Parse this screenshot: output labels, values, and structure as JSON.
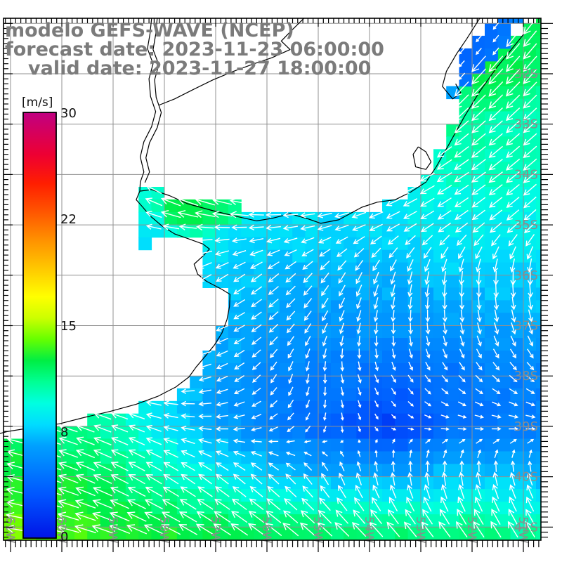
{
  "title": {
    "line1": "modelo GEFS-WAVE (NCEP)",
    "line2": "forecast date: 2023-11-23 06:00:00",
    "line3": "valid date: 2023-11-27 18:00:00"
  },
  "colorbar": {
    "unit_label": "[m/s]",
    "tick_labels": [
      "30",
      "22",
      "15",
      "8",
      "0"
    ],
    "min": 0,
    "max": 30,
    "stops": [
      [
        0,
        "#0014e6"
      ],
      [
        3,
        "#0055ff"
      ],
      [
        5,
        "#0080ff"
      ],
      [
        6.5,
        "#00a0ff"
      ],
      [
        8,
        "#00dcff"
      ],
      [
        9.5,
        "#00ffe0"
      ],
      [
        11,
        "#00ff94"
      ],
      [
        12.5,
        "#00ee44"
      ],
      [
        14,
        "#66ff00"
      ],
      [
        15.5,
        "#ccff00"
      ],
      [
        17,
        "#ffff00"
      ],
      [
        19,
        "#ffc800"
      ],
      [
        21,
        "#ff9100"
      ],
      [
        23,
        "#ff5500"
      ],
      [
        25,
        "#ff1e00"
      ],
      [
        27,
        "#ee0032"
      ],
      [
        30,
        "#c00082"
      ]
    ]
  },
  "axes": {
    "lat_labels": [
      "32S",
      "33S",
      "34S",
      "35S",
      "36S",
      "37S",
      "38S",
      "39S",
      "40S",
      "41S"
    ],
    "lat_values": [
      -32,
      -33,
      -34,
      -35,
      -36,
      -37,
      -38,
      -39,
      -40,
      -41
    ],
    "lon_labels": [
      "61W",
      "60W",
      "59W",
      "58W",
      "57W",
      "56W",
      "55W",
      "54W",
      "53W",
      "52W",
      "51W"
    ],
    "lon_values": [
      -61,
      -60,
      -59,
      -58,
      -57,
      -56,
      -55,
      -54,
      -53,
      -52,
      -51
    ],
    "label_color": "#8c8c8c",
    "grid_color": "#909090"
  },
  "chart_data": {
    "type": "heatmap",
    "units": "m/s",
    "value_range": [
      0,
      30
    ],
    "grid_lons": [
      -61.5,
      -60.5,
      -59.5,
      -58.5,
      -57.5,
      -56.5,
      -55.5,
      -54.5,
      -53.5,
      -52.5,
      -51.5,
      -50.5
    ],
    "grid_lats": [
      -31,
      -32,
      -33,
      -34,
      -35,
      -36,
      -37,
      -38,
      -39,
      -40,
      -41,
      -42
    ],
    "speed_grid": [
      [
        11,
        11,
        11,
        11,
        11,
        11,
        11,
        11,
        11.5,
        12,
        12.5,
        12
      ],
      [
        10,
        10,
        10,
        10,
        10,
        10,
        10,
        10.5,
        11.5,
        12.5,
        12.5,
        11.5
      ],
      [
        10,
        10,
        10,
        10,
        10,
        9.8,
        9.5,
        9.5,
        10,
        11,
        10.5,
        10
      ],
      [
        11,
        11,
        11,
        10.5,
        10,
        9.5,
        9,
        8.8,
        9,
        10,
        10,
        10
      ],
      [
        10.5,
        10.5,
        10.5,
        10,
        9,
        8.5,
        8.2,
        8,
        8.2,
        8.8,
        8.8,
        9
      ],
      [
        9,
        9,
        9,
        8.5,
        8,
        7.5,
        7.2,
        7,
        7.2,
        7.5,
        7.8,
        8
      ],
      [
        9.5,
        9.5,
        9.5,
        9,
        7.5,
        6.8,
        6.3,
        6,
        6,
        6.2,
        6.5,
        6.8
      ],
      [
        10,
        10,
        10,
        9.5,
        7.2,
        6,
        5.2,
        4.6,
        4.2,
        4.4,
        5,
        5.2
      ],
      [
        11.5,
        11.5,
        11,
        9.5,
        7.5,
        6,
        4.5,
        3.2,
        1.8,
        4,
        4.8,
        5
      ],
      [
        13,
        12.8,
        12.2,
        11,
        9.5,
        8.5,
        7.5,
        7,
        7,
        7.5,
        7.5,
        7
      ],
      [
        14,
        13.8,
        13.2,
        12.8,
        12.4,
        12,
        11.8,
        11.6,
        11.4,
        11.2,
        11,
        10.5
      ],
      [
        15.2,
        15,
        14.4,
        13.8,
        13.2,
        12.8,
        12.4,
        12.2,
        12,
        11.6,
        11.4,
        11
      ]
    ],
    "direction_grid": [
      [
        230,
        230,
        230,
        230,
        230,
        230,
        230,
        230,
        230,
        230,
        232,
        232
      ],
      [
        226,
        226,
        226,
        226,
        226,
        226,
        226,
        226,
        226,
        228,
        228,
        228
      ],
      [
        218,
        218,
        218,
        218,
        218,
        218,
        218,
        218,
        220,
        222,
        222,
        222
      ],
      [
        142,
        142,
        144,
        146,
        150,
        158,
        172,
        192,
        204,
        212,
        218,
        222
      ],
      [
        158,
        158,
        160,
        163,
        172,
        180,
        188,
        198,
        208,
        214,
        219,
        224
      ],
      [
        200,
        200,
        202,
        204,
        208,
        214,
        222,
        238,
        252,
        262,
        268,
        270
      ],
      [
        172,
        174,
        178,
        184,
        194,
        210,
        230,
        252,
        268,
        278,
        285,
        290
      ],
      [
        156,
        158,
        162,
        172,
        190,
        215,
        252,
        282,
        300,
        310,
        316,
        320
      ],
      [
        168,
        165,
        160,
        158,
        172,
        190,
        225,
        280,
        330,
        350,
        355,
        356
      ],
      [
        168,
        162,
        156,
        150,
        145,
        140,
        134,
        112,
        98,
        96,
        102,
        112
      ],
      [
        172,
        168,
        162,
        156,
        150,
        145,
        140,
        135,
        130,
        126,
        122,
        120
      ],
      [
        175,
        172,
        166,
        160,
        153,
        148,
        143,
        138,
        134,
        130,
        128,
        126
      ]
    ],
    "sea_rows": [
      [
        -30.75,
        -50.75
      ],
      [
        -31,
        -51
      ],
      [
        -31.25,
        -51.25
      ],
      [
        -31.5,
        -51.5
      ],
      [
        -31.75,
        -52
      ],
      [
        -32,
        -52
      ],
      [
        -32.25,
        -52.25
      ],
      [
        -32.5,
        -52.25
      ],
      [
        -32.75,
        -52.25
      ],
      [
        -33,
        -52.5
      ],
      [
        -33.25,
        -52.5
      ],
      [
        -33.5,
        -52.75
      ],
      [
        -33.75,
        -52.75
      ],
      [
        -34,
        -53
      ],
      [
        -34.25,
        -53.25
      ],
      [
        -34.5,
        -53.75
      ],
      [
        -34.75,
        -56.5
      ],
      [
        -35,
        -57
      ],
      [
        -35.25,
        -57.25
      ],
      [
        -35.5,
        -57.25
      ],
      [
        -35.75,
        -57.25
      ],
      [
        -36,
        -57.25
      ],
      [
        -36.25,
        -56.75
      ],
      [
        -36.5,
        -56.75
      ],
      [
        -36.75,
        -56.75
      ],
      [
        -37,
        -57
      ],
      [
        -37.25,
        -57
      ],
      [
        -37.5,
        -57.25
      ],
      [
        -37.75,
        -57.25
      ],
      [
        -38,
        -57.5
      ],
      [
        -38.25,
        -57.75
      ],
      [
        -38.5,
        -58.5
      ],
      [
        -38.75,
        -59.5
      ],
      [
        -39,
        -60.5
      ],
      [
        -39.25,
        -61.25
      ],
      [
        -39.5,
        -61.25
      ],
      [
        -39.75,
        -61.25
      ],
      [
        -40,
        -61.25
      ],
      [
        -40.25,
        -61.25
      ],
      [
        -40.5,
        -61.25
      ],
      [
        -40.75,
        -61.25
      ],
      [
        -41,
        -61.25
      ],
      [
        -41.25,
        -61.25
      ]
    ],
    "extra_cells": [
      [
        -30.75,
        -51.5,
        4.5
      ],
      [
        -30.75,
        -51.25,
        5
      ],
      [
        -31,
        -51.75,
        4
      ],
      [
        -31,
        -51.5,
        4.5
      ],
      [
        -31.25,
        -52,
        4
      ],
      [
        -31.25,
        -51.75,
        4.2
      ],
      [
        -31.25,
        -51.5,
        4.8
      ],
      [
        -31.5,
        -52.25,
        3.8
      ],
      [
        -31.5,
        -52,
        4
      ],
      [
        -31.5,
        -51.75,
        4.5
      ],
      [
        -31.75,
        -52.25,
        4
      ],
      [
        -31.75,
        -52,
        4.2
      ],
      [
        -32,
        -52.25,
        4.5
      ],
      [
        -32.25,
        -52.5,
        6.5
      ],
      [
        -34.25,
        -58.5,
        9.5
      ],
      [
        -34.25,
        -58.25,
        10
      ],
      [
        -34.5,
        -58.5,
        10
      ],
      [
        -34.5,
        -58.25,
        10.5
      ],
      [
        -34.5,
        -58,
        12.3
      ],
      [
        -34.5,
        -57.75,
        12.5
      ],
      [
        -34.5,
        -57.5,
        12.3
      ],
      [
        -34.5,
        -57.25,
        12
      ],
      [
        -34.5,
        -57,
        11.5
      ],
      [
        -34.5,
        -56.75,
        11
      ],
      [
        -34.75,
        -58.5,
        9
      ],
      [
        -34.75,
        -58.25,
        9.5
      ],
      [
        -34.75,
        -58,
        12
      ],
      [
        -34.75,
        -57.75,
        12.3
      ],
      [
        -34.75,
        -57.5,
        12.5
      ],
      [
        -34.75,
        -57.25,
        12
      ],
      [
        -34.75,
        -57,
        11.5
      ],
      [
        -34.75,
        -56.75,
        11
      ],
      [
        -35,
        -58.5,
        8.5
      ],
      [
        -35,
        -58.25,
        8.5
      ],
      [
        -35,
        -58,
        9.5
      ],
      [
        -35,
        -57.75,
        10
      ],
      [
        -35,
        -57.5,
        10.5
      ],
      [
        -35,
        -57.25,
        10
      ],
      [
        -35.25,
        -58.5,
        8
      ]
    ],
    "coastlines": {
      "ocean_coast": [
        [
          -50.75,
          -30.9
        ],
        [
          -51.1,
          -31.35
        ],
        [
          -51.5,
          -31.85
        ],
        [
          -51.85,
          -32.35
        ],
        [
          -52.15,
          -32.85
        ],
        [
          -52.45,
          -33.4
        ],
        [
          -52.7,
          -33.85
        ],
        [
          -52.9,
          -34.15
        ],
        [
          -53.2,
          -34.35
        ],
        [
          -53.5,
          -34.5
        ],
        [
          -53.85,
          -34.55
        ],
        [
          -54.15,
          -34.65
        ],
        [
          -54.6,
          -34.9
        ],
        [
          -54.95,
          -34.97
        ],
        [
          -55.2,
          -34.88
        ],
        [
          -55.55,
          -34.78
        ],
        [
          -55.9,
          -34.87
        ],
        [
          -56.2,
          -34.92
        ],
        [
          -56.6,
          -34.83
        ],
        [
          -57.05,
          -34.72
        ],
        [
          -57.55,
          -34.58
        ],
        [
          -57.9,
          -34.42
        ],
        [
          -58.25,
          -34.3
        ],
        [
          -58.48,
          -34.33
        ],
        [
          -58.55,
          -34.5
        ],
        [
          -58.42,
          -34.65
        ],
        [
          -58.28,
          -34.82
        ],
        [
          -58.05,
          -35.02
        ],
        [
          -57.8,
          -35.18
        ],
        [
          -57.52,
          -35.28
        ],
        [
          -57.25,
          -35.38
        ],
        [
          -57.12,
          -35.48
        ],
        [
          -57.25,
          -35.62
        ],
        [
          -57.42,
          -35.78
        ],
        [
          -57.35,
          -35.98
        ],
        [
          -57.18,
          -36.12
        ],
        [
          -56.88,
          -36.28
        ],
        [
          -56.72,
          -36.38
        ],
        [
          -56.73,
          -36.62
        ],
        [
          -56.78,
          -36.88
        ],
        [
          -56.88,
          -37.15
        ],
        [
          -57.02,
          -37.38
        ],
        [
          -57.18,
          -37.58
        ],
        [
          -57.38,
          -37.82
        ],
        [
          -57.52,
          -38.02
        ],
        [
          -57.78,
          -38.22
        ],
        [
          -58.12,
          -38.4
        ],
        [
          -58.55,
          -38.56
        ],
        [
          -59.05,
          -38.7
        ],
        [
          -59.55,
          -38.82
        ],
        [
          -60.05,
          -38.95
        ],
        [
          -60.55,
          -39.02
        ],
        [
          -61.05,
          -39.1
        ],
        [
          -61.35,
          -39.18
        ]
      ],
      "uruguay_river_west": [
        [
          -58.25,
          -30.9
        ],
        [
          -58.28,
          -31.2
        ],
        [
          -58.33,
          -31.5
        ],
        [
          -58.22,
          -31.8
        ],
        [
          -58.3,
          -32.1
        ],
        [
          -58.27,
          -32.45
        ],
        [
          -58.17,
          -32.75
        ],
        [
          -58.25,
          -33.05
        ],
        [
          -58.4,
          -33.35
        ],
        [
          -58.47,
          -33.65
        ],
        [
          -58.4,
          -33.95
        ],
        [
          -58.47,
          -34.15
        ],
        [
          -58.48,
          -34.33
        ]
      ],
      "uruguay_river_east": [
        [
          -58.14,
          -30.9
        ],
        [
          -58.17,
          -31.22
        ],
        [
          -58.22,
          -31.52
        ],
        [
          -58.11,
          -31.82
        ],
        [
          -58.19,
          -32.12
        ],
        [
          -58.16,
          -32.47
        ],
        [
          -58.06,
          -32.77
        ],
        [
          -58.14,
          -33.07
        ],
        [
          -58.29,
          -33.37
        ],
        [
          -58.36,
          -33.67
        ],
        [
          -58.29,
          -33.95
        ],
        [
          -58.38,
          -34.16
        ]
      ],
      "negro_river": [
        [
          -55.28,
          -30.9
        ],
        [
          -55.5,
          -31.12
        ],
        [
          -55.72,
          -31.35
        ],
        [
          -55.55,
          -31.52
        ],
        [
          -55.9,
          -31.68
        ],
        [
          -56.25,
          -31.8
        ],
        [
          -56.65,
          -31.95
        ],
        [
          -57.05,
          -32.12
        ],
        [
          -57.45,
          -32.32
        ],
        [
          -57.8,
          -32.5
        ],
        [
          -58.1,
          -32.62
        ]
      ],
      "lagoon_inner_shore": [
        [
          -51.85,
          -30.9
        ],
        [
          -52.1,
          -31.3
        ],
        [
          -52.3,
          -31.6
        ],
        [
          -52.5,
          -31.95
        ],
        [
          -52.58,
          -32.25
        ],
        [
          -52.38,
          -32.5
        ],
        [
          -52.22,
          -32.38
        ],
        [
          -52.32,
          -32.2
        ]
      ],
      "small_lagoon": [
        [
          -53.05,
          -33.45
        ],
        [
          -52.9,
          -33.55
        ],
        [
          -52.8,
          -33.75
        ],
        [
          -52.9,
          -33.9
        ],
        [
          -53.1,
          -33.85
        ],
        [
          -53.15,
          -33.6
        ],
        [
          -53.05,
          -33.45
        ]
      ]
    }
  }
}
